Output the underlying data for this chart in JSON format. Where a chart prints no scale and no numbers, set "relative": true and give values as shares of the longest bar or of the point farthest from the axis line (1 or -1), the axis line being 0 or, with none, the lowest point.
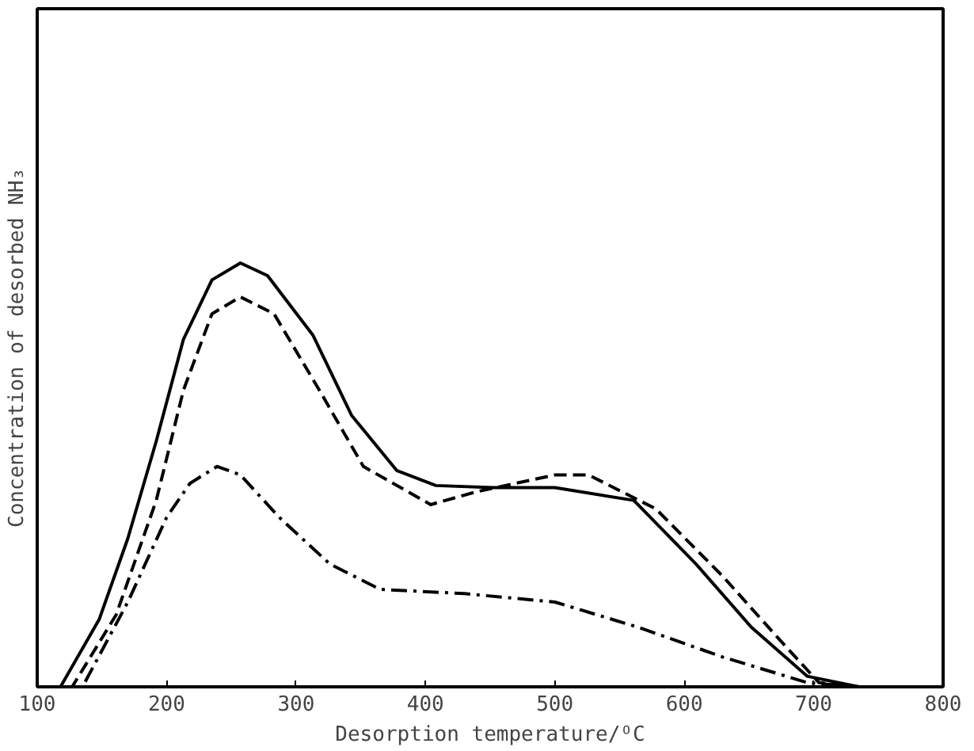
{
  "chart_data": {
    "type": "line",
    "relative": true,
    "xlabel": "Desorption temperature/ᴼC",
    "ylabel": "Concentration of desorbed NH₃",
    "xlim": [
      100,
      800
    ],
    "xticks": [
      100,
      200,
      300,
      400,
      500,
      600,
      700,
      800
    ],
    "grid": false,
    "marker": "none",
    "series": [
      {
        "color": "#000000",
        "line_style": "solid",
        "x": [
          100,
          118,
          148,
          170,
          192,
          213,
          235,
          257,
          278,
          313,
          343,
          378,
          408,
          452,
          500,
          561,
          609,
          652,
          695,
          735
        ],
        "values": [
          0,
          0,
          0.16,
          0.35,
          0.58,
          0.82,
          0.96,
          1.0,
          0.97,
          0.83,
          0.64,
          0.51,
          0.475,
          0.47,
          0.47,
          0.44,
          0.29,
          0.14,
          0.025,
          0
        ]
      },
      {
        "color": "#000000",
        "line_style": "dashed",
        "x": [
          110,
          127,
          161,
          192,
          213,
          235,
          257,
          283,
          318,
          352,
          404,
          439,
          500,
          526,
          578,
          630,
          674,
          704,
          735
        ],
        "values": [
          0,
          0,
          0.17,
          0.44,
          0.7,
          0.88,
          0.92,
          0.88,
          0.7,
          0.52,
          0.43,
          0.46,
          0.5,
          0.5,
          0.42,
          0.26,
          0.11,
          0.01,
          0
        ]
      },
      {
        "color": "#000000",
        "line_style": "dashdot",
        "x": [
          115,
          135,
          170,
          200,
          218,
          239,
          257,
          287,
          326,
          365,
          430,
          500,
          565,
          630,
          695,
          735
        ],
        "values": [
          0,
          0,
          0.2,
          0.4,
          0.48,
          0.52,
          0.5,
          0.4,
          0.29,
          0.23,
          0.22,
          0.2,
          0.14,
          0.07,
          0.01,
          0
        ]
      }
    ]
  }
}
